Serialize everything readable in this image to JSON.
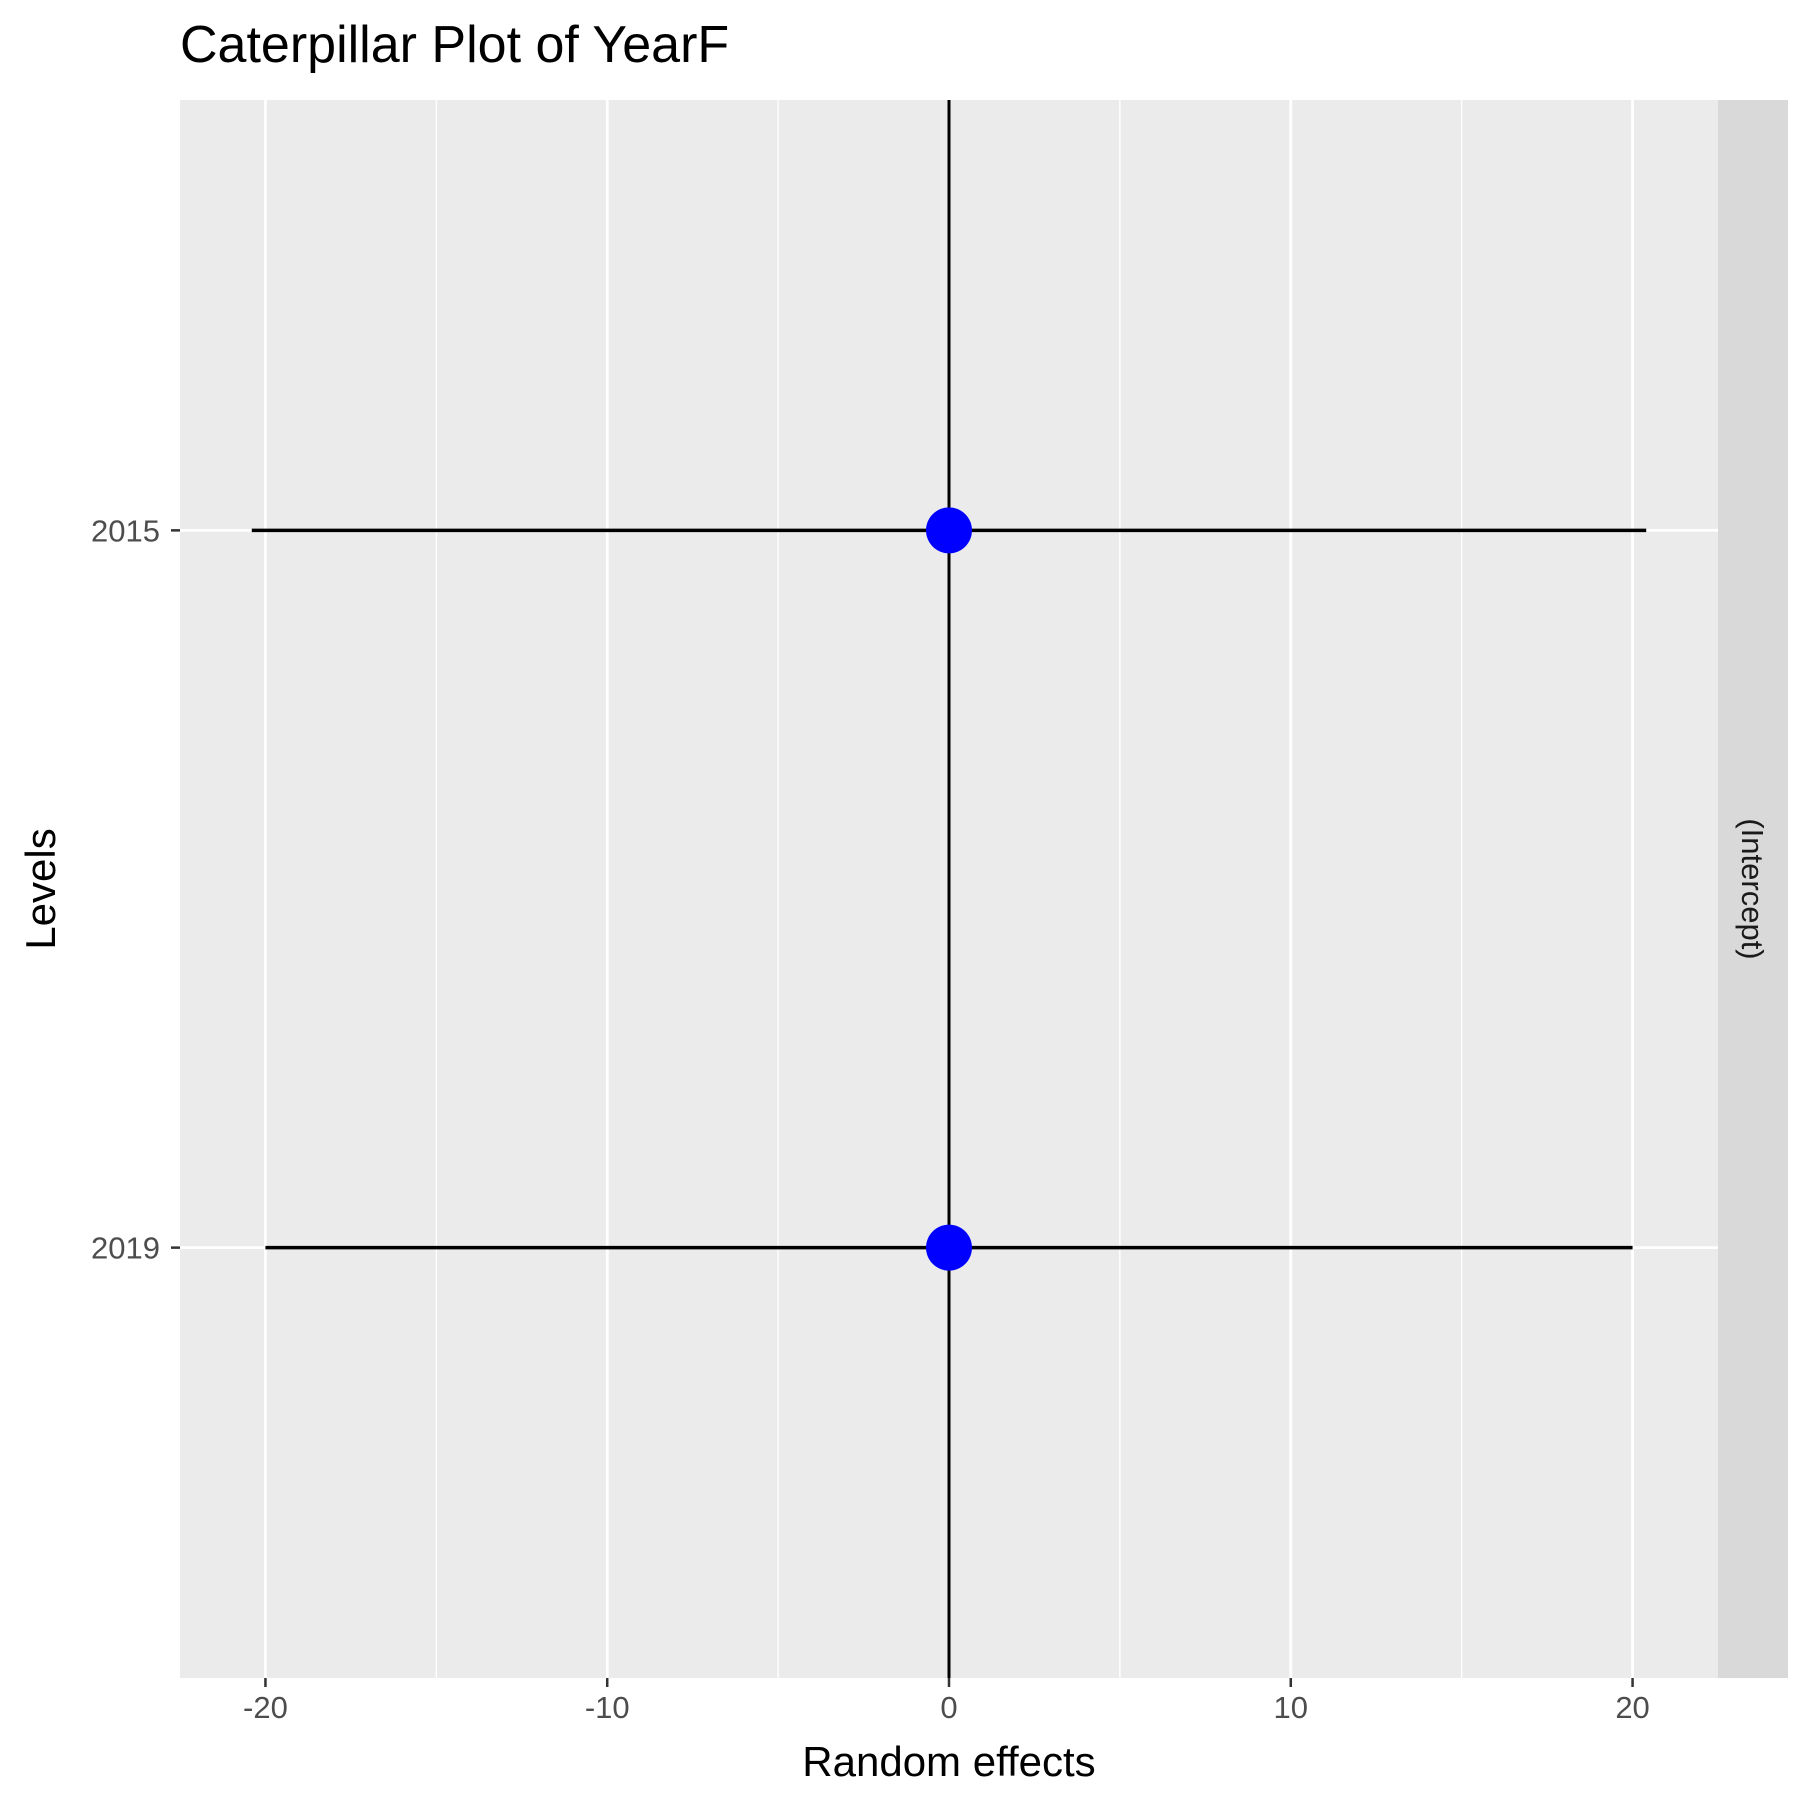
{
  "chart_data": {
    "type": "scatter",
    "subtype": "caterpillar-errorbar",
    "title": "Caterpillar Plot of  YearF",
    "xlabel": "Random effects",
    "ylabel": "Levels",
    "facet_label": "(Intercept)",
    "xlim": [
      -22.5,
      22.5
    ],
    "x_ticks": [
      -20,
      -10,
      0,
      10,
      20
    ],
    "x_tick_labels": [
      "-20",
      "-10",
      "0",
      "10",
      "20"
    ],
    "x_minor_ticks": [
      -15,
      -5,
      5,
      15
    ],
    "categories": [
      "2015",
      "2019"
    ],
    "points": [
      {
        "level": "2015",
        "estimate": 0,
        "lower": -20.4,
        "upper": 20.4
      },
      {
        "level": "2019",
        "estimate": 0,
        "lower": -20.0,
        "upper": 20.0
      }
    ],
    "reference_line_x": 0,
    "grid": true,
    "colors": {
      "point": "#0000ff",
      "errorbar": "#000000",
      "panel_background": "#ebebeb",
      "strip_background": "#d9d9d9",
      "gridline": "#ffffff"
    }
  }
}
